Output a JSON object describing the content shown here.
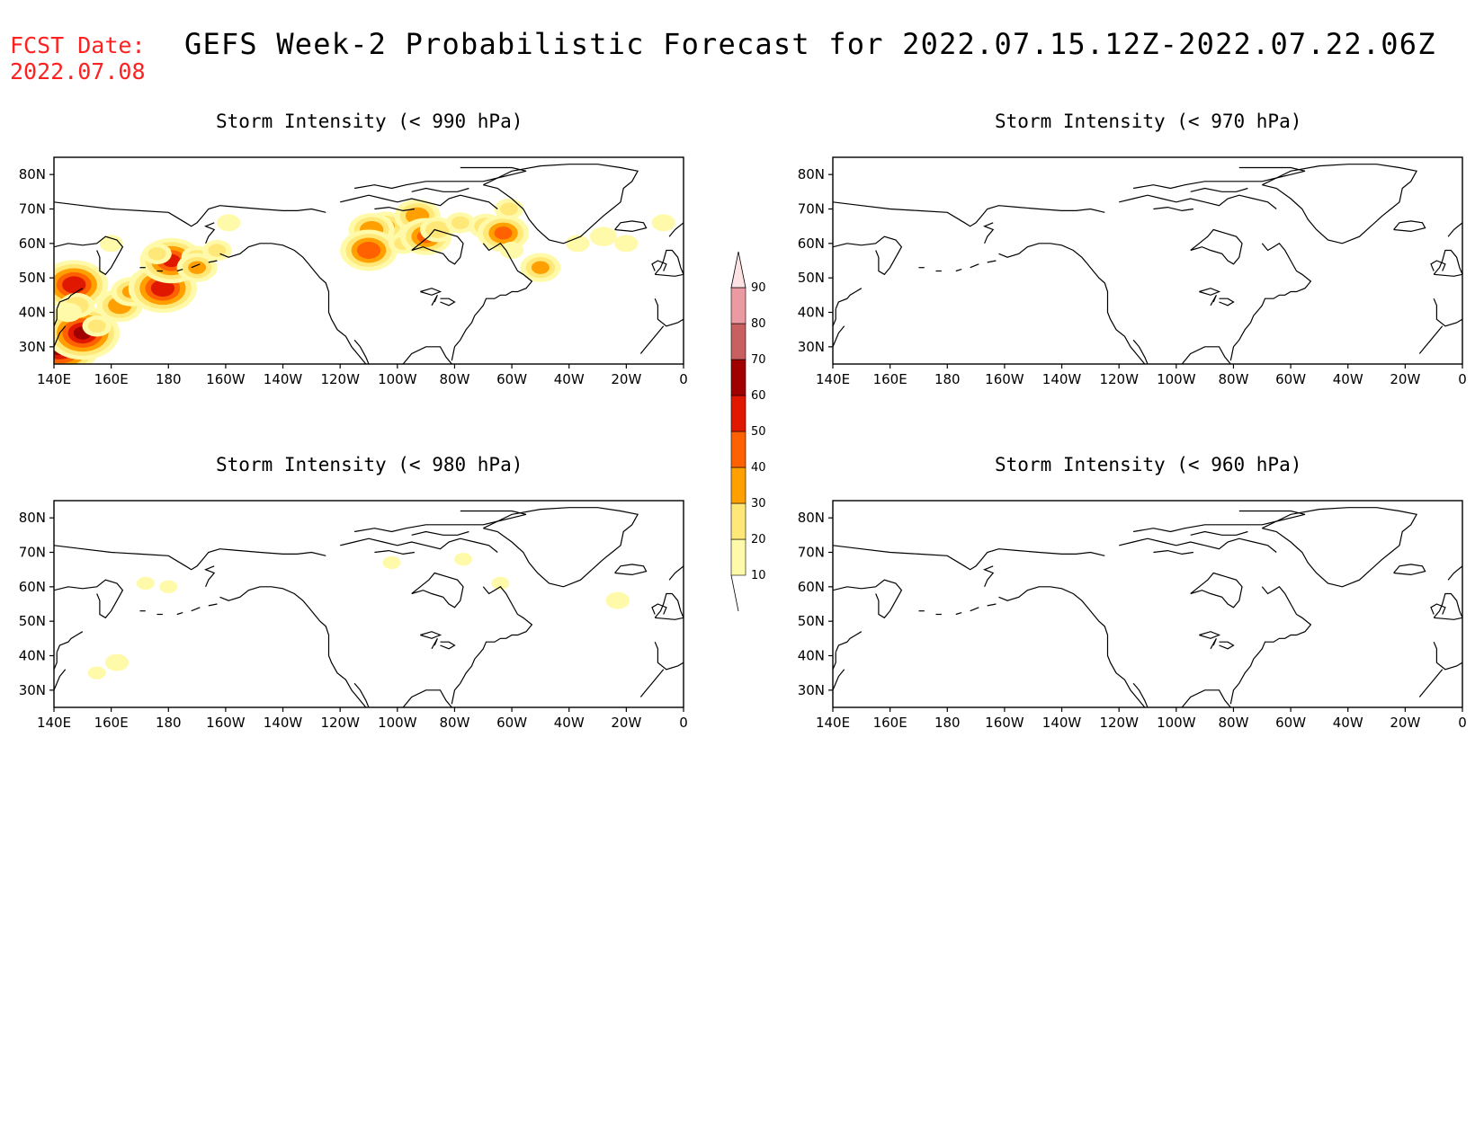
{
  "header": {
    "fcst_label": "FCST Date:",
    "fcst_date": "2022.07.08",
    "title": "GEFS Week-2 Probabilistic Forecast for 2022.07.15.12Z-2022.07.22.06Z"
  },
  "axes": {
    "lat_labels": [
      "80N",
      "70N",
      "60N",
      "50N",
      "40N",
      "30N"
    ],
    "lon_labels": [
      "140E",
      "160E",
      "180",
      "160W",
      "140W",
      "120W",
      "100W",
      "80W",
      "60W",
      "40W",
      "20W",
      "0"
    ]
  },
  "panels": [
    {
      "id": "p990",
      "title": "Storm Intensity (< 990 hPa)",
      "blobs": [
        {
          "lon": 142,
          "lat": 30,
          "p": 65
        },
        {
          "lon": 147,
          "lat": 48,
          "p": 55
        },
        {
          "lon": 150,
          "lat": 34,
          "p": 60
        },
        {
          "lon": 148,
          "lat": 42,
          "p": 25
        },
        {
          "lon": 145,
          "lat": 40,
          "p": 18
        },
        {
          "lon": 155,
          "lat": 36,
          "p": 20
        },
        {
          "lon": 163,
          "lat": 42,
          "p": 35
        },
        {
          "lon": 167,
          "lat": 46,
          "p": 30
        },
        {
          "lon": 172,
          "lat": 49,
          "p": 22
        },
        {
          "lon": 178,
          "lat": 47,
          "p": 55
        },
        {
          "lon": 181,
          "lat": 55,
          "p": 50
        },
        {
          "lon": 176,
          "lat": 57,
          "p": 20
        },
        {
          "lon": 190,
          "lat": 56,
          "p": 22
        },
        {
          "lon": 197,
          "lat": 58,
          "p": 20
        },
        {
          "lon": 201,
          "lat": 66,
          "p": 15
        },
        {
          "lon": 160,
          "lat": 60,
          "p": 15
        },
        {
          "lon": 190,
          "lat": 53,
          "p": 30
        },
        {
          "lon": 256,
          "lat": 65,
          "p": 30
        },
        {
          "lon": 251,
          "lat": 64,
          "p": 35
        },
        {
          "lon": 250,
          "lat": 58,
          "p": 45
        },
        {
          "lon": 262,
          "lat": 60,
          "p": 20
        },
        {
          "lon": 267,
          "lat": 68,
          "p": 35
        },
        {
          "lon": 270,
          "lat": 62,
          "p": 40
        },
        {
          "lon": 274,
          "lat": 64,
          "p": 25
        },
        {
          "lon": 282,
          "lat": 66,
          "p": 20
        },
        {
          "lon": 291,
          "lat": 65,
          "p": 25
        },
        {
          "lon": 297,
          "lat": 63,
          "p": 40
        },
        {
          "lon": 299,
          "lat": 70,
          "p": 20
        },
        {
          "lon": 300,
          "lat": 58,
          "p": 15
        },
        {
          "lon": 310,
          "lat": 53,
          "p": 30
        },
        {
          "lon": 323,
          "lat": 60,
          "p": 15
        },
        {
          "lon": 332,
          "lat": 62,
          "p": 18
        },
        {
          "lon": 340,
          "lat": 60,
          "p": 15
        },
        {
          "lon": 353,
          "lat": 66,
          "p": 15
        }
      ]
    },
    {
      "id": "p970",
      "title": "Storm Intensity (< 970 hPa)",
      "blobs": []
    },
    {
      "id": "p980",
      "title": "Storm Intensity (< 980 hPa)",
      "blobs": [
        {
          "lon": 162,
          "lat": 38,
          "p": 15
        },
        {
          "lon": 155,
          "lat": 35,
          "p": 10
        },
        {
          "lon": 180,
          "lat": 60,
          "p": 10
        },
        {
          "lon": 172,
          "lat": 61,
          "p": 10
        },
        {
          "lon": 337,
          "lat": 56,
          "p": 15
        },
        {
          "lon": 258,
          "lat": 67,
          "p": 10
        },
        {
          "lon": 296,
          "lat": 61,
          "p": 10
        },
        {
          "lon": 283,
          "lat": 68,
          "p": 10
        }
      ]
    },
    {
      "id": "p960",
      "title": "Storm Intensity (< 960 hPa)",
      "blobs": []
    }
  ],
  "colorbar": {
    "levels": [
      10,
      20,
      30,
      40,
      50,
      60,
      70,
      80,
      90
    ],
    "colors": [
      "#fffaaa",
      "#ffe878",
      "#ffa000",
      "#ff6000",
      "#e01800",
      "#a00000",
      "#c86060",
      "#ea9aa0",
      "#fde2e4"
    ]
  },
  "map_colors": {
    "coast": "#000000",
    "frame": "#000000"
  }
}
